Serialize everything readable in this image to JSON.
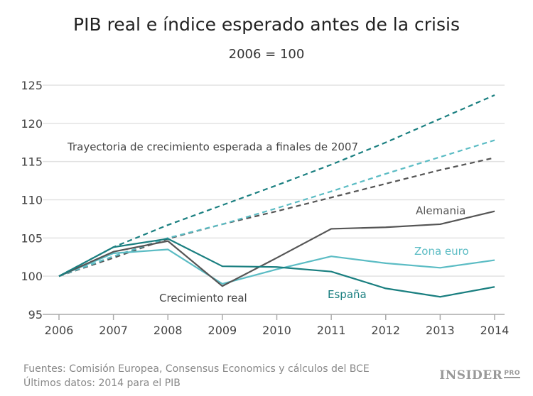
{
  "chart_data": {
    "type": "line",
    "title": "PIB real e índice esperado antes de la crisis",
    "subtitle": "2006 = 100",
    "xlabel": "",
    "ylabel": "",
    "x": [
      2006,
      2007,
      2008,
      2009,
      2010,
      2011,
      2012,
      2013,
      2014
    ],
    "ylim": [
      95,
      125
    ],
    "yticks": [
      95,
      100,
      105,
      110,
      115,
      120,
      125
    ],
    "grid": true,
    "series": [
      {
        "name": "España",
        "style": "solid",
        "color": "#1a7f80",
        "values": [
          100,
          103.8,
          104.9,
          101.3,
          101.2,
          100.6,
          98.4,
          97.3,
          98.6
        ]
      },
      {
        "name": "Alemania",
        "style": "solid",
        "color": "#555555",
        "values": [
          100,
          103.2,
          104.6,
          98.7,
          102.4,
          106.2,
          106.4,
          106.8,
          108.5
        ]
      },
      {
        "name": "Zona euro",
        "style": "solid",
        "color": "#5bbcc4",
        "values": [
          100,
          103.0,
          103.5,
          99.0,
          100.9,
          102.6,
          101.7,
          101.1,
          102.1
        ]
      },
      {
        "style": "dashed",
        "color": "#1a7f80",
        "values": [
          100,
          103.8,
          106.7,
          109.3,
          111.9,
          114.6,
          117.5,
          120.6,
          123.7
        ]
      },
      {
        "style": "dashed",
        "color": "#5bbcc4",
        "values": [
          100,
          102.6,
          105.0,
          106.8,
          108.9,
          111.1,
          113.4,
          115.6,
          117.8
        ]
      },
      {
        "style": "dashed",
        "color": "#555555",
        "values": [
          100,
          102.4,
          104.9,
          106.8,
          108.5,
          110.3,
          112.1,
          113.9,
          115.5
        ]
      }
    ],
    "annotations": {
      "expected": "Trayectoria de crecimiento esperada a finales de 2007",
      "real": "Crecimiento real"
    }
  },
  "footer": {
    "sources": "Fuentes: Comisión Europea, Consensus Economics y cálculos del BCE",
    "latest": "Últimos datos: 2014 para el PIB"
  },
  "logo": {
    "main": "INSIDER",
    "sup": "PRO"
  }
}
